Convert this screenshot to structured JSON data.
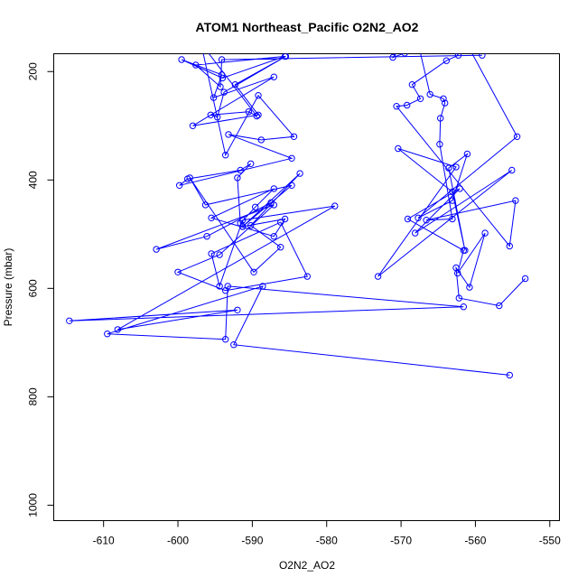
{
  "chart_data": {
    "type": "line",
    "title": "ATOM1 Northeast_Pacific O2N2_AO2",
    "xlabel": "O2N2_AO2",
    "ylabel": "Pressure (mbar)",
    "xlim": [
      -616.7,
      -548.7
    ],
    "ylim": [
      1028.5,
      167.1
    ],
    "x_ticks": [
      -610,
      -600,
      -590,
      -580,
      -570,
      -560,
      -550
    ],
    "y_ticks": [
      200,
      400,
      600,
      800,
      1000
    ],
    "y_reversed": true,
    "grid": false,
    "legend": "none",
    "series_color": "#0000ff",
    "series": [
      {
        "x": [
          -559.1,
          -594.1,
          -594.3,
          -597.6,
          -585.6,
          -594.0,
          -599.5,
          -594.1,
          -595.2,
          -587.1,
          -598.0,
          -589.2,
          -592.3,
          -585.5,
          -593.8,
          -594.7,
          -595.6,
          -590.5,
          -589.4,
          -596.9,
          -593.6,
          -589.2,
          -584.4,
          -588.8,
          -593.2,
          -584.7,
          -599.8,
          -598.7,
          -591.6,
          -590.2,
          -592.0,
          -591.6,
          -589.6,
          -587.1,
          -595.5,
          -587.1,
          -585.6,
          -591.3,
          -584.7,
          -596.3,
          -598.4,
          -589.8,
          -586.2,
          -590.2,
          -583.6,
          -591.3,
          -587.5,
          -596.1,
          -602.9,
          -587.1,
          -594.4,
          -600.0,
          -593.6,
          -582.6,
          -586.2,
          -595.5,
          -594.4,
          -591.3,
          -578.9,
          -608.1,
          -592.0,
          -614.6,
          -561.6,
          -593.3,
          -593.6,
          -609.5,
          -588.6,
          -592.5,
          -555.4
        ],
        "y": [
          170,
          178,
          228,
          188,
          172,
          212,
          178,
          206,
          248,
          210,
          300,
          280,
          224,
          172,
          238,
          284,
          280,
          274,
          282,
          148,
          354,
          244,
          320,
          326,
          316,
          360,
          410,
          398,
          382,
          370,
          396,
          480,
          450,
          416,
          470,
          504,
          472,
          486,
          410,
          446,
          396,
          570,
          524,
          484,
          388,
          486,
          442,
          504,
          528,
          446,
          538,
          570,
          604,
          578,
          478,
          536,
          596,
          474,
          448,
          676,
          640,
          660,
          634,
          596,
          694,
          684,
          596,
          704,
          760
        ]
      },
      {
        "x": [
          -569.5,
          -571.1,
          -569.5,
          -565.7,
          -562.3,
          -563.9,
          -568.5,
          -567.4,
          -569.2,
          -570.6,
          -555.4,
          -554.6,
          -566.6,
          -563.1,
          -564.8,
          -564.7,
          -564.1,
          -564.3,
          -566.1,
          -567.8,
          -566.6,
          -564.2,
          -562.2,
          -561.5,
          -554.4,
          -567.7,
          -563.1,
          -561.1,
          -563.6,
          -561.4,
          -563.1,
          -570.4,
          -562.6,
          -573.1,
          -555.1,
          -568.1,
          -562.1,
          -569.1,
          -561.6,
          -562.4,
          -558.7,
          -560.8,
          -562.6,
          -562.2,
          -556.8,
          -553.3
        ],
        "y": [
          148,
          174,
          166,
          116,
          170,
          180,
          224,
          250,
          262,
          264,
          522,
          438,
          474,
          472,
          334,
          286,
          258,
          250,
          242,
          142,
          128,
          118,
          130,
          140,
          320,
          470,
          438,
          352,
          378,
          530,
          422,
          342,
          376,
          578,
          382,
          498,
          416,
          472,
          530,
          572,
          498,
          598,
          562,
          618,
          632,
          582
        ]
      }
    ]
  }
}
